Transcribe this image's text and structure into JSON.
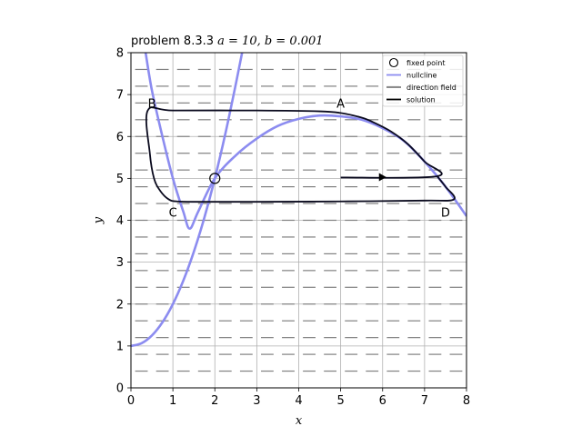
{
  "chart_data": {
    "type": "line",
    "title_prefix": "problem 8.3.3 ",
    "title_math": "a = 10, b = 0.001",
    "xlabel": "x",
    "ylabel": "y",
    "xlim": [
      0,
      8
    ],
    "ylim": [
      0,
      8
    ],
    "xticks": [
      0,
      1,
      2,
      3,
      4,
      5,
      6,
      7,
      8
    ],
    "yticks": [
      0,
      1,
      2,
      3,
      4,
      5,
      6,
      7,
      8
    ],
    "grid": true,
    "legend_position": "top-right",
    "legend": [
      {
        "label": "fixed point",
        "kind": "marker"
      },
      {
        "label": "nullcline",
        "kind": "line",
        "color": "#8c8cf0"
      },
      {
        "label": "direction field",
        "kind": "line",
        "color": "#808080"
      },
      {
        "label": "solution",
        "kind": "line",
        "color": "#000000"
      }
    ],
    "fixed_point": {
      "x": 2,
      "y": 5
    },
    "nullcline_1": [
      [
        0,
        1.0
      ],
      [
        0.25,
        1.063
      ],
      [
        0.5,
        1.25
      ],
      [
        0.75,
        1.563
      ],
      [
        1.0,
        2.0
      ],
      [
        1.25,
        2.563
      ],
      [
        1.5,
        3.25
      ],
      [
        1.75,
        4.063
      ],
      [
        2.0,
        5.0
      ],
      [
        2.25,
        6.063
      ],
      [
        2.5,
        7.25
      ],
      [
        2.65,
        8.0
      ]
    ],
    "nullcline_2": [
      [
        0.35,
        8.0
      ],
      [
        0.5,
        7.1
      ],
      [
        0.75,
        6.0
      ],
      [
        1.0,
        5.0
      ],
      [
        1.25,
        4.2
      ],
      [
        1.4,
        3.8
      ],
      [
        1.6,
        4.2
      ],
      [
        2.0,
        5.0
      ],
      [
        2.5,
        5.55
      ],
      [
        3.0,
        5.95
      ],
      [
        3.5,
        6.25
      ],
      [
        4.0,
        6.42
      ],
      [
        4.5,
        6.5
      ],
      [
        5.0,
        6.48
      ],
      [
        5.5,
        6.4
      ],
      [
        6.0,
        6.2
      ],
      [
        6.5,
        5.9
      ],
      [
        7.0,
        5.4
      ],
      [
        7.5,
        4.8
      ],
      [
        8.0,
        4.1
      ]
    ],
    "solution": [
      [
        5.0,
        5.02
      ],
      [
        7.3,
        5.05
      ],
      [
        7.0,
        5.4
      ],
      [
        6.6,
        5.82
      ],
      [
        6.2,
        6.12
      ],
      [
        5.8,
        6.33
      ],
      [
        5.5,
        6.45
      ],
      [
        5.0,
        6.56
      ],
      [
        4.5,
        6.6
      ],
      [
        3.0,
        6.62
      ],
      [
        1.0,
        6.62
      ],
      [
        0.4,
        6.62
      ],
      [
        0.45,
        5.6
      ],
      [
        0.55,
        5.0
      ],
      [
        0.7,
        4.7
      ],
      [
        0.9,
        4.5
      ],
      [
        1.1,
        4.45
      ],
      [
        1.6,
        4.44
      ],
      [
        3.0,
        4.44
      ],
      [
        5.0,
        4.45
      ],
      [
        7.0,
        4.47
      ],
      [
        7.7,
        4.5
      ],
      [
        7.5,
        4.8
      ],
      [
        7.3,
        5.05
      ]
    ],
    "solution_arrow": {
      "x": 6.0,
      "y": 5.03
    },
    "annotations": [
      {
        "text": "A",
        "x": 5.0,
        "y": 6.8
      },
      {
        "text": "B",
        "x": 0.5,
        "y": 6.8
      },
      {
        "text": "C",
        "x": 1.0,
        "y": 4.2
      },
      {
        "text": "D",
        "x": 7.5,
        "y": 4.2
      }
    ],
    "direction_field": {
      "y_levels": [
        0.4,
        0.8,
        1.2,
        1.6,
        2.0,
        2.4,
        2.8,
        3.2,
        3.6,
        4.0,
        4.4,
        4.8,
        5.2,
        5.6,
        6.0,
        6.4,
        6.8,
        7.2,
        7.6
      ],
      "x_step": 0.5,
      "half_length": 0.15
    }
  }
}
